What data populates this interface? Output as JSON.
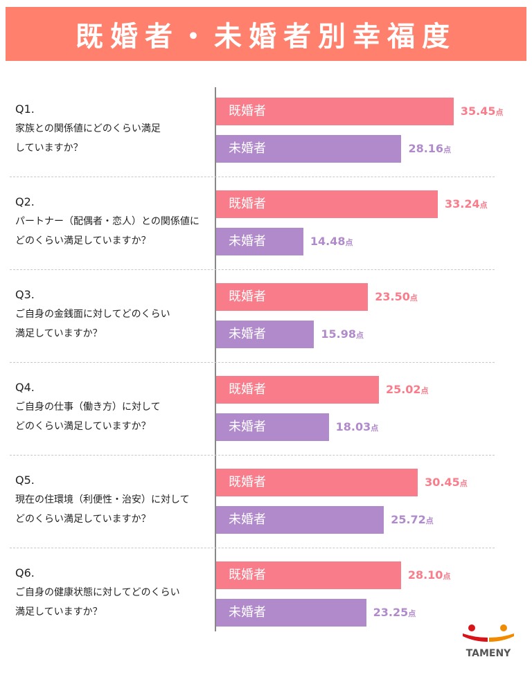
{
  "title": "既婚者・未婚者別幸福度",
  "logo_text": "Tameny",
  "chart_data": {
    "type": "bar",
    "title": "既婚者・未婚者別幸福度",
    "unit": "点",
    "series_names": [
      "既婚者",
      "未婚者"
    ],
    "colors": {
      "既婚者": "#F97C8A",
      "未婚者": "#B08ACA",
      "header": "#FF806C"
    },
    "questions": [
      {
        "num": "Q1.",
        "lines": [
          "家族との関係値にどのくらい満足",
          "していますか？"
        ],
        "married": 35.45,
        "unmarried": 28.16,
        "married_label": "35.45",
        "unmarried_label": "28.16"
      },
      {
        "num": "Q2.",
        "lines": [
          "パートナー（配偶者・恋人）との関係値に",
          "どのくらい満足していますか？"
        ],
        "married": 33.24,
        "unmarried": 14.48,
        "married_label": "33.24",
        "unmarried_label": "14.48"
      },
      {
        "num": "Q3.",
        "lines": [
          "ご自身の金銭面に対してどのくらい",
          "満足していますか？"
        ],
        "married": 23.5,
        "unmarried": 15.98,
        "married_label": "23.50",
        "unmarried_label": "15.98"
      },
      {
        "num": "Q4.",
        "lines": [
          "ご自身の仕事（働き方）に対して",
          "どのくらい満足していますか？"
        ],
        "married": 25.02,
        "unmarried": 18.03,
        "married_label": "25.02",
        "unmarried_label": "18.03"
      },
      {
        "num": "Q5.",
        "lines": [
          "現在の住環境（利便性・治安）に対して",
          "どのくらい満足していますか？"
        ],
        "married": 30.45,
        "unmarried": 25.72,
        "married_label": "30.45",
        "unmarried_label": "25.72"
      },
      {
        "num": "Q6.",
        "lines": [
          "ご自身の健康状態に対してどのくらい",
          "満足していますか？"
        ],
        "married": 28.1,
        "unmarried": 23.25,
        "married_label": "28.10",
        "unmarried_label": "23.25"
      }
    ]
  }
}
